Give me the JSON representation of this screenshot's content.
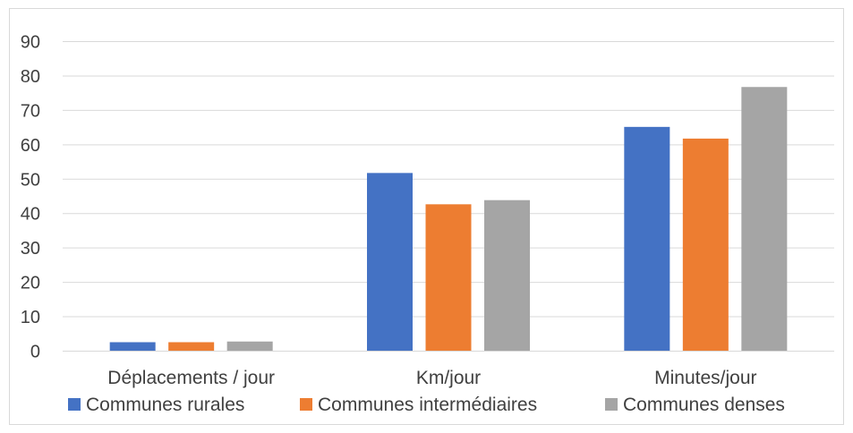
{
  "chart_data": {
    "type": "bar",
    "title": "",
    "xlabel": "",
    "ylabel": "",
    "categories": [
      "Déplacements / jour",
      "Km/jour",
      "Minutes/jour"
    ],
    "series": [
      {
        "name": "Communes rurales",
        "color": "#4472c4",
        "values": [
          2.6,
          51.8,
          65.2
        ]
      },
      {
        "name": "Communes intermédiaires",
        "color": "#ed7d31",
        "values": [
          2.6,
          42.7,
          61.8
        ]
      },
      {
        "name": "Communes denses",
        "color": "#a5a5a5",
        "values": [
          2.8,
          43.9,
          76.8
        ]
      }
    ],
    "ylim": [
      0,
      90
    ],
    "yticks": [
      0,
      10,
      20,
      30,
      40,
      50,
      60,
      70,
      80,
      90
    ],
    "grid": true,
    "legend_position": "bottom"
  }
}
